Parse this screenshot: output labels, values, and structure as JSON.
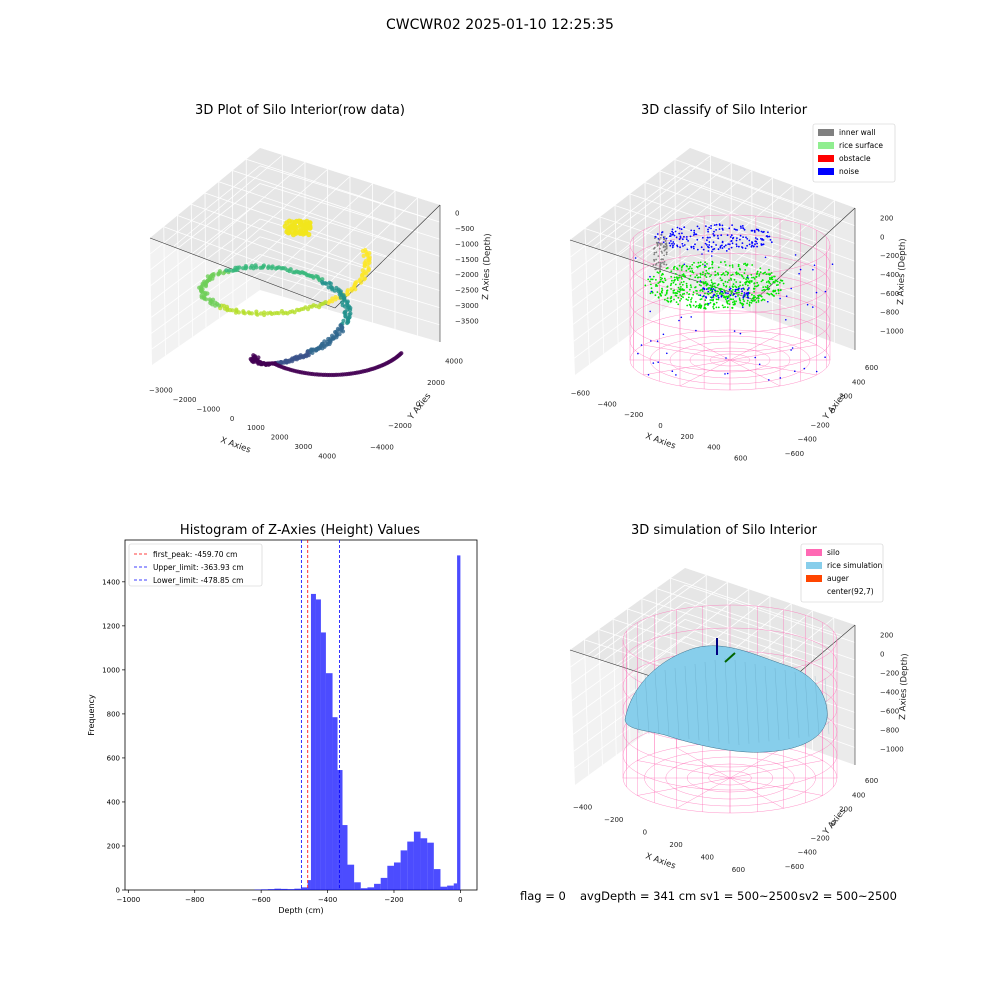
{
  "figure": {
    "suptitle": "CWCWR02 2025-01-10 12:25:35"
  },
  "status_line": {
    "flag": "flag = 0",
    "avg_depth": "avgDepth = 341 cm",
    "sv1": "sv1 = 500~2500",
    "sv2": "sv2 = 500~2500"
  },
  "panels": {
    "raw": {
      "title": "3D Plot of Silo Interior(row data)",
      "xlabel": "X Axies",
      "ylabel": "Y Axies",
      "zlabel": "Z Axies (Depth)",
      "xticks": [
        "−3000",
        "−2000",
        "−1000",
        "0",
        "1000",
        "2000",
        "3000",
        "4000"
      ],
      "yticks": [
        "−4000",
        "−2000",
        "0",
        "2000",
        "4000"
      ],
      "zticks": [
        "0",
        "−500",
        "−1000",
        "−1500",
        "−2000",
        "−2500",
        "−3000",
        "−3500"
      ]
    },
    "classify": {
      "title": "3D classify of Silo Interior",
      "xlabel": "X Axies",
      "ylabel": "Y Axies",
      "zlabel": "Z Axies (Depth)",
      "xticks": [
        "−600",
        "−400",
        "−200",
        "0",
        "200",
        "400",
        "600"
      ],
      "yticks": [
        "−600",
        "−400",
        "−200",
        "0",
        "200",
        "400",
        "600"
      ],
      "zticks": [
        "200",
        "0",
        "−200",
        "−400",
        "−600",
        "−800",
        "−1000"
      ],
      "legend": [
        {
          "label": "inner wall",
          "color": "#808080"
        },
        {
          "label": "rice surface",
          "color": "#90ee90"
        },
        {
          "label": "obstacle",
          "color": "#ff0000"
        },
        {
          "label": "noise",
          "color": "#0000ff"
        }
      ]
    },
    "simulation": {
      "title": "3D simulation of Silo Interior",
      "xlabel": "X Axies",
      "ylabel": "Y Axies",
      "zlabel": "Z Axies (Depth)",
      "xticks": [
        "−400",
        "−200",
        "0",
        "200",
        "400",
        "600"
      ],
      "yticks": [
        "−600",
        "−400",
        "−200",
        "0",
        "200",
        "400",
        "600"
      ],
      "zticks": [
        "200",
        "0",
        "−200",
        "−400",
        "−600",
        "−800",
        "−1000"
      ],
      "legend": [
        {
          "label": "silo",
          "color": "#ff69b4"
        },
        {
          "label": "rice simulation",
          "color": "#87ceeb"
        },
        {
          "label": "auger",
          "color": "#ff4500"
        },
        {
          "label": "center(92,7)",
          "color": ""
        }
      ]
    }
  },
  "chart_data": [
    {
      "type": "scatter",
      "title": "3D Plot of Silo Interior(row data)",
      "projection": "3d",
      "xlabel": "X Axies",
      "ylabel": "Y Axies",
      "zlabel": "Z Axies (Depth)",
      "xlim": [
        -3500,
        4500
      ],
      "ylim": [
        -4500,
        4500
      ],
      "zlim": [
        -3800,
        200
      ],
      "colormap": "viridis"
    },
    {
      "type": "scatter",
      "title": "3D classify of Silo Interior",
      "projection": "3d",
      "xlabel": "X Axies",
      "ylabel": "Y Axies",
      "zlabel": "Z Axies (Depth)",
      "xlim": [
        -650,
        700
      ],
      "ylim": [
        -650,
        700
      ],
      "zlim": [
        -1050,
        300
      ],
      "series": [
        {
          "name": "inner wall",
          "color": "#808080"
        },
        {
          "name": "rice surface",
          "color": "#90ee90"
        },
        {
          "name": "obstacle",
          "color": "#ff0000"
        },
        {
          "name": "noise",
          "color": "#0000ff"
        }
      ]
    },
    {
      "type": "bar",
      "title": "Histogram of Z-Axies (Height) Values",
      "xlabel": "Depth (cm)",
      "ylabel": "Frequency",
      "xlim": [
        -1010,
        50
      ],
      "ylim": [
        0,
        1590
      ],
      "xticks": [
        -1000,
        -800,
        -600,
        -400,
        -200,
        0
      ],
      "yticks": [
        0,
        200,
        400,
        600,
        800,
        1000,
        1200,
        1400
      ],
      "bin_width": 20,
      "color": "#0000ff",
      "bins": [
        {
          "x0": -620,
          "value": 2
        },
        {
          "x0": -600,
          "value": 3
        },
        {
          "x0": -580,
          "value": 4
        },
        {
          "x0": -560,
          "value": 6
        },
        {
          "x0": -540,
          "value": 5
        },
        {
          "x0": -520,
          "value": 4
        },
        {
          "x0": -500,
          "value": 6
        },
        {
          "x0": -480,
          "value": 12
        },
        {
          "x0": -460,
          "value": 45
        },
        {
          "x0": -450,
          "value": 1345
        },
        {
          "x0": -435,
          "value": 1320
        },
        {
          "x0": -420,
          "value": 1170
        },
        {
          "x0": -405,
          "value": 985
        },
        {
          "x0": -385,
          "value": 785
        },
        {
          "x0": -370,
          "value": 545
        },
        {
          "x0": -355,
          "value": 295
        },
        {
          "x0": -340,
          "value": 115
        },
        {
          "x0": -320,
          "value": 35
        },
        {
          "x0": -300,
          "value": 8
        },
        {
          "x0": -280,
          "value": 12
        },
        {
          "x0": -260,
          "value": 28
        },
        {
          "x0": -240,
          "value": 55
        },
        {
          "x0": -220,
          "value": 110
        },
        {
          "x0": -200,
          "value": 125
        },
        {
          "x0": -180,
          "value": 180
        },
        {
          "x0": -160,
          "value": 220
        },
        {
          "x0": -140,
          "value": 265
        },
        {
          "x0": -120,
          "value": 235
        },
        {
          "x0": -100,
          "value": 215
        },
        {
          "x0": -80,
          "value": 95
        },
        {
          "x0": -60,
          "value": 15
        },
        {
          "x0": -40,
          "value": 20
        },
        {
          "x0": -20,
          "value": 30
        },
        {
          "x0": -10,
          "value": 1520
        }
      ],
      "lines": [
        {
          "name": "first_peak: -459.70 cm",
          "x": -459.7,
          "color": "#ff0000"
        },
        {
          "name": "Upper_limit: -363.93 cm",
          "x": -363.93,
          "color": "#0000ff"
        },
        {
          "name": "Lower_limit: -478.85 cm",
          "x": -478.85,
          "color": "#0000ff"
        }
      ],
      "legend_position": "upper-left"
    },
    {
      "type": "surface",
      "title": "3D simulation of Silo Interior",
      "projection": "3d",
      "xlabel": "X Axies",
      "ylabel": "Y Axies",
      "zlabel": "Z Axies (Depth)",
      "xlim": [
        -500,
        650
      ],
      "ylim": [
        -650,
        650
      ],
      "zlim": [
        -1050,
        300
      ],
      "series": [
        {
          "name": "silo",
          "color": "#ff69b4"
        },
        {
          "name": "rice simulation",
          "color": "#87ceeb"
        },
        {
          "name": "auger",
          "color": "#ff4500"
        },
        {
          "name": "center(92,7)"
        }
      ]
    }
  ]
}
